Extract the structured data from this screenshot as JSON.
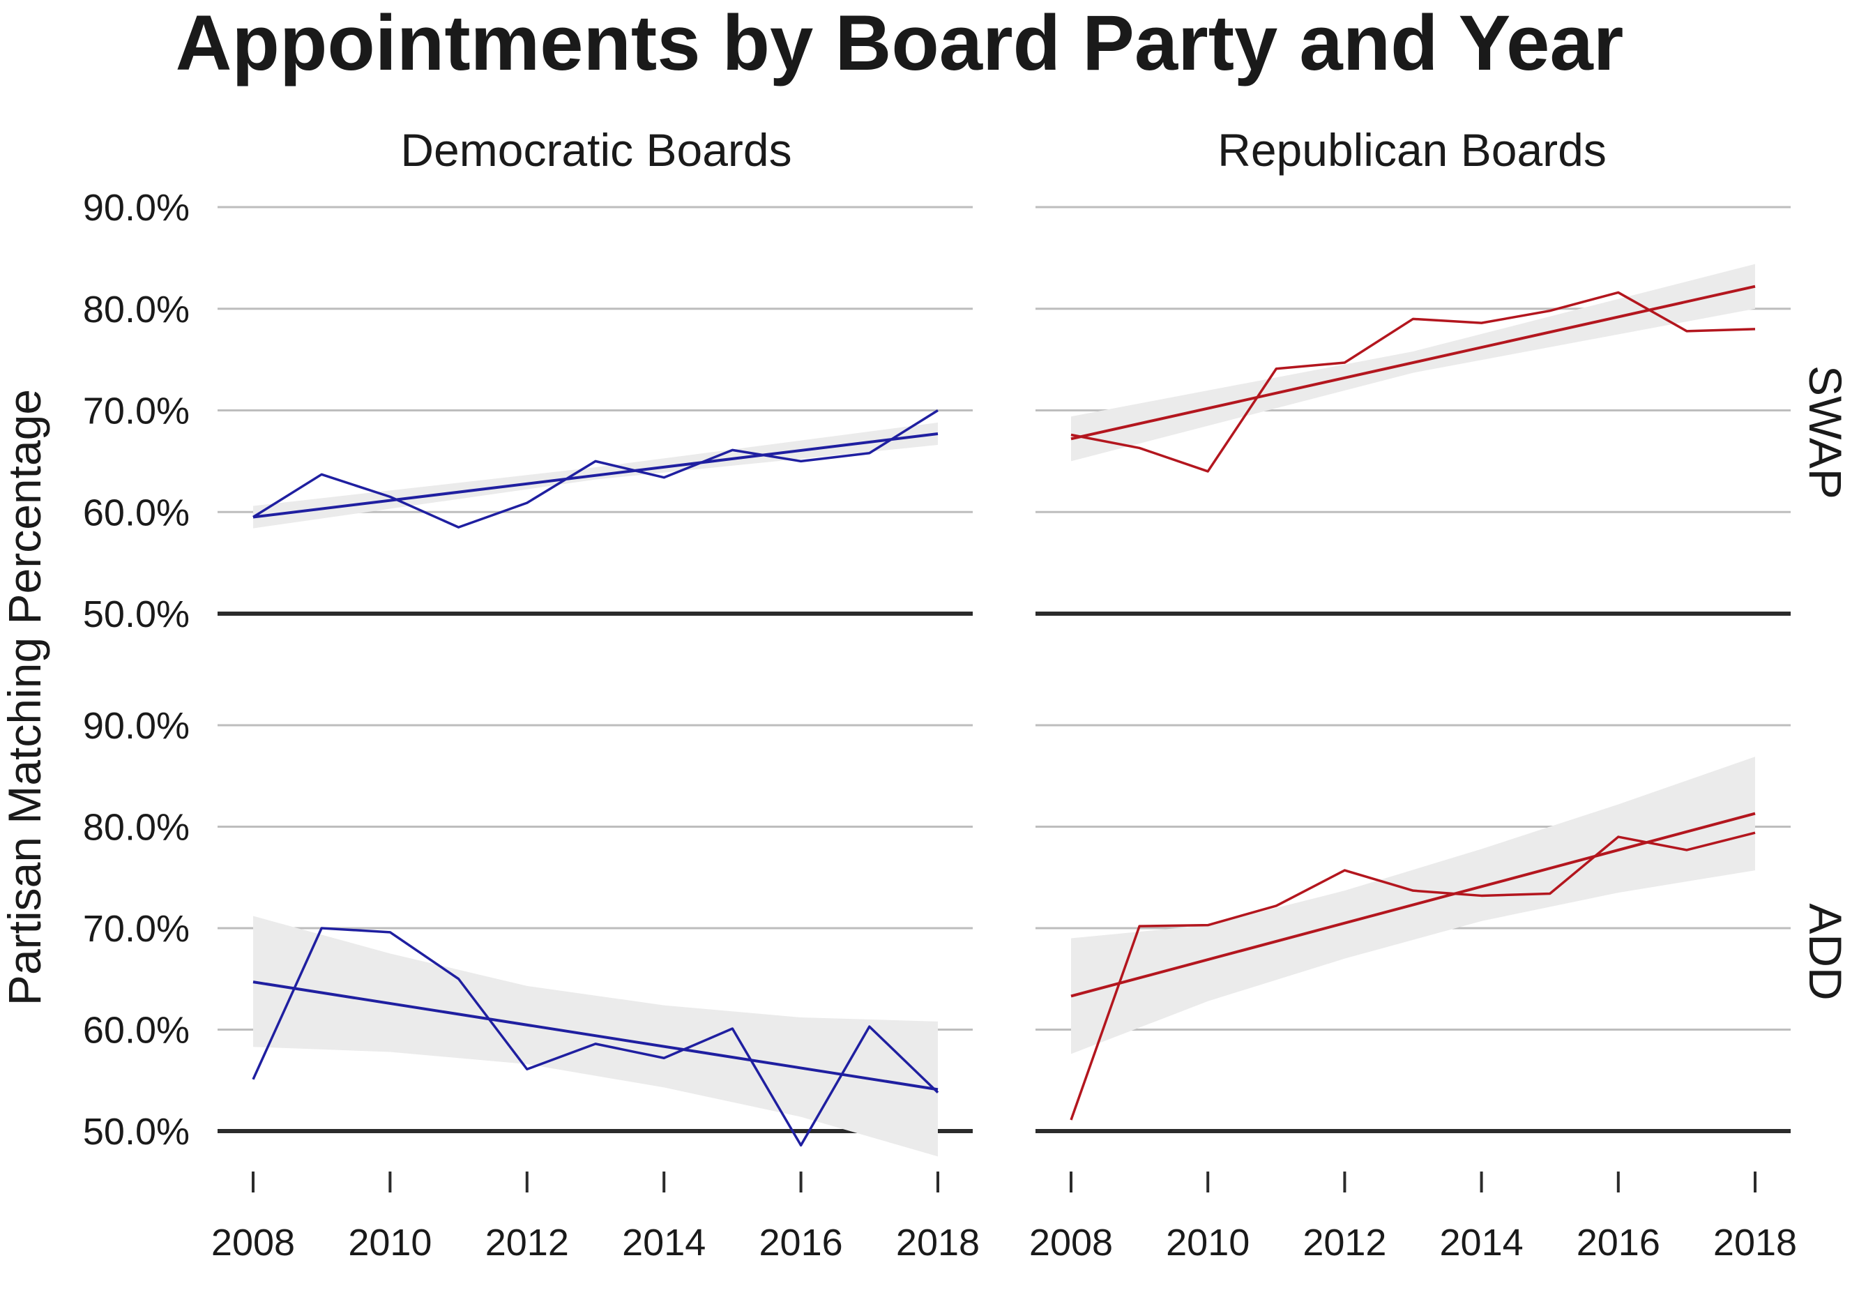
{
  "title": "Appointments by Board Party and Year",
  "colors": {
    "democratic": "#1f1fa0",
    "republican": "#b3161e",
    "ribbon": "#ebebeb",
    "grid": "#bdbdbd",
    "baseline": "#2b2b2b"
  },
  "chart_data": {
    "type": "line",
    "title": "Appointments by Board Party and Year",
    "ylabel": "Partisan Matching Percentage",
    "xlabel": "",
    "column_labels": [
      "Democratic Boards",
      "Republican Boards"
    ],
    "row_labels": [
      "SWAP",
      "ADD"
    ],
    "x_ticks": [
      "2008",
      "2010",
      "2012",
      "2014",
      "2016",
      "2018"
    ],
    "y_ticks": [
      "50.0%",
      "60.0%",
      "70.0%",
      "80.0%",
      "90.0%"
    ],
    "ylim": [
      50,
      90
    ],
    "xlim": [
      2008,
      2018
    ],
    "grid": true,
    "legend": "none",
    "panels": [
      {
        "row": "SWAP",
        "column": "Democratic Boards",
        "color_key": "democratic",
        "x": [
          2008,
          2009,
          2010,
          2011,
          2012,
          2013,
          2014,
          2015,
          2016,
          2017,
          2018
        ],
        "y": [
          59.5,
          63.7,
          61.5,
          58.5,
          60.9,
          65.0,
          63.4,
          66.1,
          65.0,
          65.8,
          70.0
        ],
        "trend": {
          "start": 59.5,
          "end": 67.7
        },
        "ribbon": {
          "x": [
            2008,
            2013,
            2018
          ],
          "lower": [
            58.4,
            63.2,
            66.6
          ],
          "upper": [
            60.6,
            64.4,
            68.8
          ]
        }
      },
      {
        "row": "SWAP",
        "column": "Republican Boards",
        "color_key": "republican",
        "x": [
          2008,
          2009,
          2010,
          2011,
          2012,
          2013,
          2014,
          2015,
          2016,
          2017,
          2018
        ],
        "y": [
          67.6,
          66.3,
          64.0,
          74.1,
          74.7,
          79.0,
          78.6,
          79.8,
          81.6,
          77.8,
          78.0
        ],
        "trend": {
          "start": 67.2,
          "end": 82.2
        },
        "ribbon": {
          "x": [
            2008,
            2013,
            2018
          ],
          "lower": [
            65.0,
            73.7,
            80.0
          ],
          "upper": [
            69.4,
            75.8,
            84.4
          ]
        }
      },
      {
        "row": "ADD",
        "column": "Democratic Boards",
        "color_key": "democratic",
        "x": [
          2008,
          2009,
          2010,
          2011,
          2012,
          2013,
          2014,
          2015,
          2016,
          2017,
          2018
        ],
        "y": [
          55.1,
          70.0,
          69.6,
          65.0,
          56.1,
          58.6,
          57.2,
          60.1,
          48.6,
          60.3,
          53.8
        ],
        "trend": {
          "start": 64.7,
          "end": 54.1
        },
        "ribbon": {
          "x": [
            2008,
            2010,
            2012,
            2014,
            2016,
            2018
          ],
          "lower": [
            58.3,
            57.8,
            56.6,
            54.3,
            51.4,
            47.5
          ],
          "upper": [
            71.2,
            67.5,
            64.3,
            62.4,
            61.2,
            60.8
          ]
        }
      },
      {
        "row": "ADD",
        "column": "Republican Boards",
        "color_key": "republican",
        "x": [
          2008,
          2009,
          2010,
          2011,
          2012,
          2013,
          2014,
          2015,
          2016,
          2017,
          2018
        ],
        "y": [
          51.1,
          70.2,
          70.3,
          72.2,
          75.7,
          73.7,
          73.2,
          73.4,
          79.0,
          77.7,
          79.4
        ],
        "trend": {
          "start": 63.3,
          "end": 81.3
        },
        "ribbon": {
          "x": [
            2008,
            2010,
            2012,
            2014,
            2016,
            2018
          ],
          "lower": [
            57.6,
            62.8,
            67.0,
            70.7,
            73.5,
            75.7
          ],
          "upper": [
            69.0,
            70.3,
            73.7,
            77.8,
            82.2,
            86.9
          ]
        }
      }
    ]
  }
}
